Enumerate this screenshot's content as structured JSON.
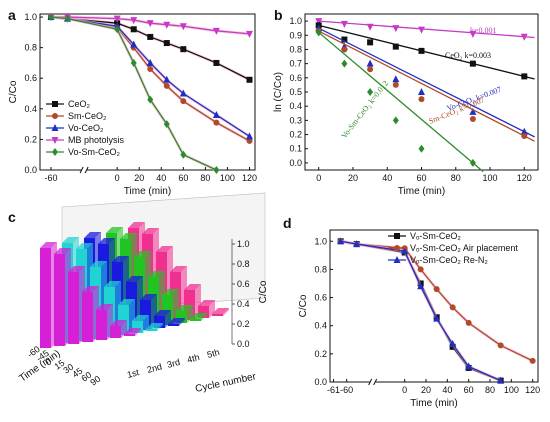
{
  "chart_data": [
    {
      "panel": "a",
      "type": "line",
      "xlabel": "Time (min)",
      "ylabel": "C/Co",
      "xticks": [
        "-60",
        "0",
        "20",
        "40",
        "60",
        "80",
        "100",
        "120"
      ],
      "yticks": [
        "0.0",
        "0.2",
        "0.4",
        "0.6",
        "0.8",
        "1.0"
      ],
      "xlim": [
        -70,
        125
      ],
      "ylim": [
        0,
        1.02
      ],
      "series": [
        {
          "name": "CeO₂",
          "color": "#111111",
          "marker": "square",
          "x": [
            -60,
            -45,
            0,
            15,
            30,
            45,
            60,
            90,
            120
          ],
          "y": [
            1.0,
            0.99,
            0.96,
            0.92,
            0.87,
            0.83,
            0.79,
            0.7,
            0.59
          ]
        },
        {
          "name": "Sm-CeO₂",
          "color": "#b04a2a",
          "marker": "circle",
          "x": [
            -60,
            -45,
            0,
            15,
            30,
            45,
            60,
            90,
            120
          ],
          "y": [
            1.0,
            0.99,
            0.93,
            0.8,
            0.66,
            0.55,
            0.45,
            0.31,
            0.19
          ]
        },
        {
          "name": "Vo-CeO₂",
          "color": "#1f2fc4",
          "marker": "triangle",
          "x": [
            -60,
            -45,
            0,
            15,
            30,
            45,
            60,
            90,
            120
          ],
          "y": [
            1.0,
            0.99,
            0.94,
            0.82,
            0.7,
            0.59,
            0.5,
            0.36,
            0.22
          ]
        },
        {
          "name": "MB photolysis",
          "color": "#c43cc4",
          "marker": "tri-down",
          "x": [
            -60,
            -45,
            0,
            15,
            30,
            45,
            60,
            90,
            120
          ],
          "y": [
            1.0,
            1.0,
            0.99,
            0.98,
            0.96,
            0.95,
            0.94,
            0.91,
            0.89
          ]
        },
        {
          "name": "Vo-Sm-CeO₂",
          "color": "#2e8a2e",
          "marker": "diamond",
          "x": [
            -60,
            -45,
            0,
            15,
            30,
            45,
            60,
            90
          ],
          "y": [
            1.0,
            0.99,
            0.92,
            0.7,
            0.46,
            0.3,
            0.1,
            0.0
          ]
        }
      ]
    },
    {
      "panel": "b",
      "type": "scatter",
      "xlabel": "Time (min)",
      "ylabel": "ln (C/Co)",
      "xticks": [
        "0",
        "20",
        "40",
        "60",
        "80",
        "100",
        "120"
      ],
      "yticks": [
        "0.0",
        "0.1",
        "0.2",
        "0.3",
        "0.4",
        "0.5",
        "0.6",
        "0.7",
        "0.8",
        "0.9",
        "1.0"
      ],
      "xlim": [
        -8,
        128
      ],
      "ylim": [
        -0.05,
        1.05
      ],
      "annotations": [
        "k=0.001",
        "CeO₂ k=0.003",
        "Vo-CeO₂ k=0.007",
        "Sm-CeO₂ k=0.007",
        "Vo-Sm-CeO₂ k=0.012"
      ],
      "series": [
        {
          "color": "#c43cc4",
          "marker": "tri-down",
          "x": [
            0,
            15,
            30,
            45,
            60,
            90,
            120
          ],
          "y": [
            1.0,
            0.98,
            0.96,
            0.95,
            0.94,
            0.91,
            0.89
          ]
        },
        {
          "color": "#111111",
          "marker": "square",
          "x": [
            0,
            15,
            30,
            45,
            60,
            90,
            120
          ],
          "y": [
            0.97,
            0.87,
            0.85,
            0.82,
            0.79,
            0.7,
            0.61
          ]
        },
        {
          "color": "#1f2fc4",
          "marker": "triangle",
          "x": [
            0,
            15,
            30,
            45,
            60,
            90,
            120
          ],
          "y": [
            0.95,
            0.82,
            0.7,
            0.59,
            0.5,
            0.36,
            0.22
          ]
        },
        {
          "color": "#b04a2a",
          "marker": "circle",
          "x": [
            0,
            15,
            30,
            45,
            60,
            90,
            120
          ],
          "y": [
            0.93,
            0.8,
            0.66,
            0.55,
            0.45,
            0.31,
            0.19
          ]
        },
        {
          "color": "#2e8a2e",
          "marker": "diamond",
          "x": [
            0,
            15,
            30,
            45,
            60,
            90
          ],
          "y": [
            0.92,
            0.7,
            0.5,
            0.3,
            0.1,
            0.0
          ]
        }
      ]
    },
    {
      "panel": "c",
      "type": "bar",
      "xlabel": "Cycle number",
      "ylabel": "C/Co",
      "depth_label": "Time (min)",
      "zticks": [
        "0.0",
        "0.2",
        "0.4",
        "0.6",
        "0.8",
        "1.0"
      ],
      "depth_ticks": [
        "-60",
        "-45",
        "0",
        "15",
        "30",
        "45",
        "60",
        "90"
      ],
      "cycle_ticks": [
        "1st",
        "2nd",
        "3rd",
        "4th",
        "5th"
      ],
      "times": [
        -60,
        0,
        15,
        30,
        45,
        60,
        90
      ],
      "cycles": [
        {
          "color": "#d61fd6",
          "values": [
            1.0,
            0.92,
            0.72,
            0.5,
            0.3,
            0.12,
            0.02
          ]
        },
        {
          "color": "#22d3d3",
          "values": [
            1.0,
            0.92,
            0.72,
            0.5,
            0.3,
            0.12,
            0.02
          ]
        },
        {
          "color": "#1a1ae0",
          "values": [
            1.0,
            0.92,
            0.72,
            0.5,
            0.3,
            0.12,
            0.02
          ]
        },
        {
          "color": "#22c422",
          "values": [
            1.0,
            0.92,
            0.72,
            0.5,
            0.3,
            0.12,
            0.02
          ]
        },
        {
          "color": "#f03090",
          "values": [
            1.0,
            0.92,
            0.72,
            0.5,
            0.3,
            0.12,
            0.02
          ]
        }
      ]
    },
    {
      "panel": "d",
      "type": "line",
      "xlabel": "Time (min)",
      "ylabel": "C/Co",
      "xticks": [
        "-61",
        "-60",
        "0",
        "20",
        "40",
        "60",
        "80",
        "100",
        "120"
      ],
      "yticks": [
        "0.0",
        "0.2",
        "0.4",
        "0.6",
        "0.8",
        "1.0"
      ],
      "xlim": [
        -70,
        125
      ],
      "ylim": [
        0,
        1.08
      ],
      "series": [
        {
          "name": "Vₒ-Sm-CeO₂",
          "color": "#111111",
          "marker": "square",
          "x": [
            -60,
            -45,
            0,
            15,
            30,
            45,
            60,
            90
          ],
          "y": [
            1.0,
            0.98,
            0.92,
            0.7,
            0.46,
            0.25,
            0.1,
            0.01
          ]
        },
        {
          "name": "Vₒ-Sm-CeO₂ Air placement",
          "color": "#b04a2a",
          "marker": "circle",
          "x": [
            -60,
            -45,
            0,
            15,
            30,
            45,
            60,
            90,
            120
          ],
          "y": [
            1.0,
            0.98,
            0.95,
            0.8,
            0.66,
            0.53,
            0.42,
            0.26,
            0.15
          ]
        },
        {
          "name": "Vₒ-Sm-CeO₂ Re-N₂",
          "color": "#1f2fc4",
          "marker": "triangle",
          "x": [
            -60,
            -45,
            0,
            15,
            30,
            45,
            60,
            90
          ],
          "y": [
            1.0,
            0.98,
            0.93,
            0.68,
            0.45,
            0.27,
            0.11,
            0.01
          ]
        }
      ]
    }
  ]
}
